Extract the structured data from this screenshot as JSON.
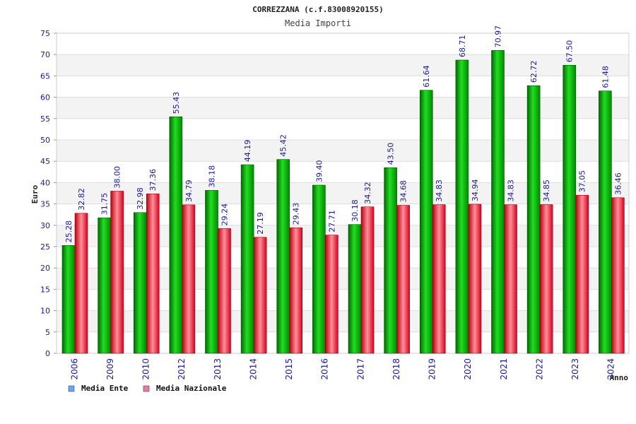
{
  "chart_data": {
    "type": "bar",
    "title": "CORREZZANA (c.f.83008920155)",
    "subtitle": "Media Importi",
    "xlabel": "Anno",
    "ylabel": "Euro",
    "ylim": [
      0,
      75
    ],
    "ytick_step": 5,
    "grid": true,
    "legend_position": "bottom-left",
    "categories": [
      "2006",
      "2009",
      "2010",
      "2012",
      "2013",
      "2014",
      "2015",
      "2016",
      "2017",
      "2018",
      "2019",
      "2020",
      "2021",
      "2022",
      "2023",
      "2024"
    ],
    "series": [
      {
        "name": "Media Ente",
        "legend_color": "#6aa6e8",
        "bar_color": "#00bb00",
        "values": [
          25.28,
          31.75,
          32.98,
          55.43,
          38.18,
          44.19,
          45.42,
          39.4,
          30.18,
          43.5,
          61.64,
          68.71,
          70.97,
          62.72,
          67.5,
          61.48
        ]
      },
      {
        "name": "Media Nazionale",
        "legend_color": "#e87aa0",
        "bar_color": "#ee2233",
        "values": [
          32.82,
          38.0,
          37.36,
          34.79,
          29.24,
          27.19,
          29.43,
          27.71,
          34.32,
          34.68,
          34.83,
          34.94,
          34.83,
          34.85,
          37.05,
          36.46
        ]
      }
    ]
  }
}
